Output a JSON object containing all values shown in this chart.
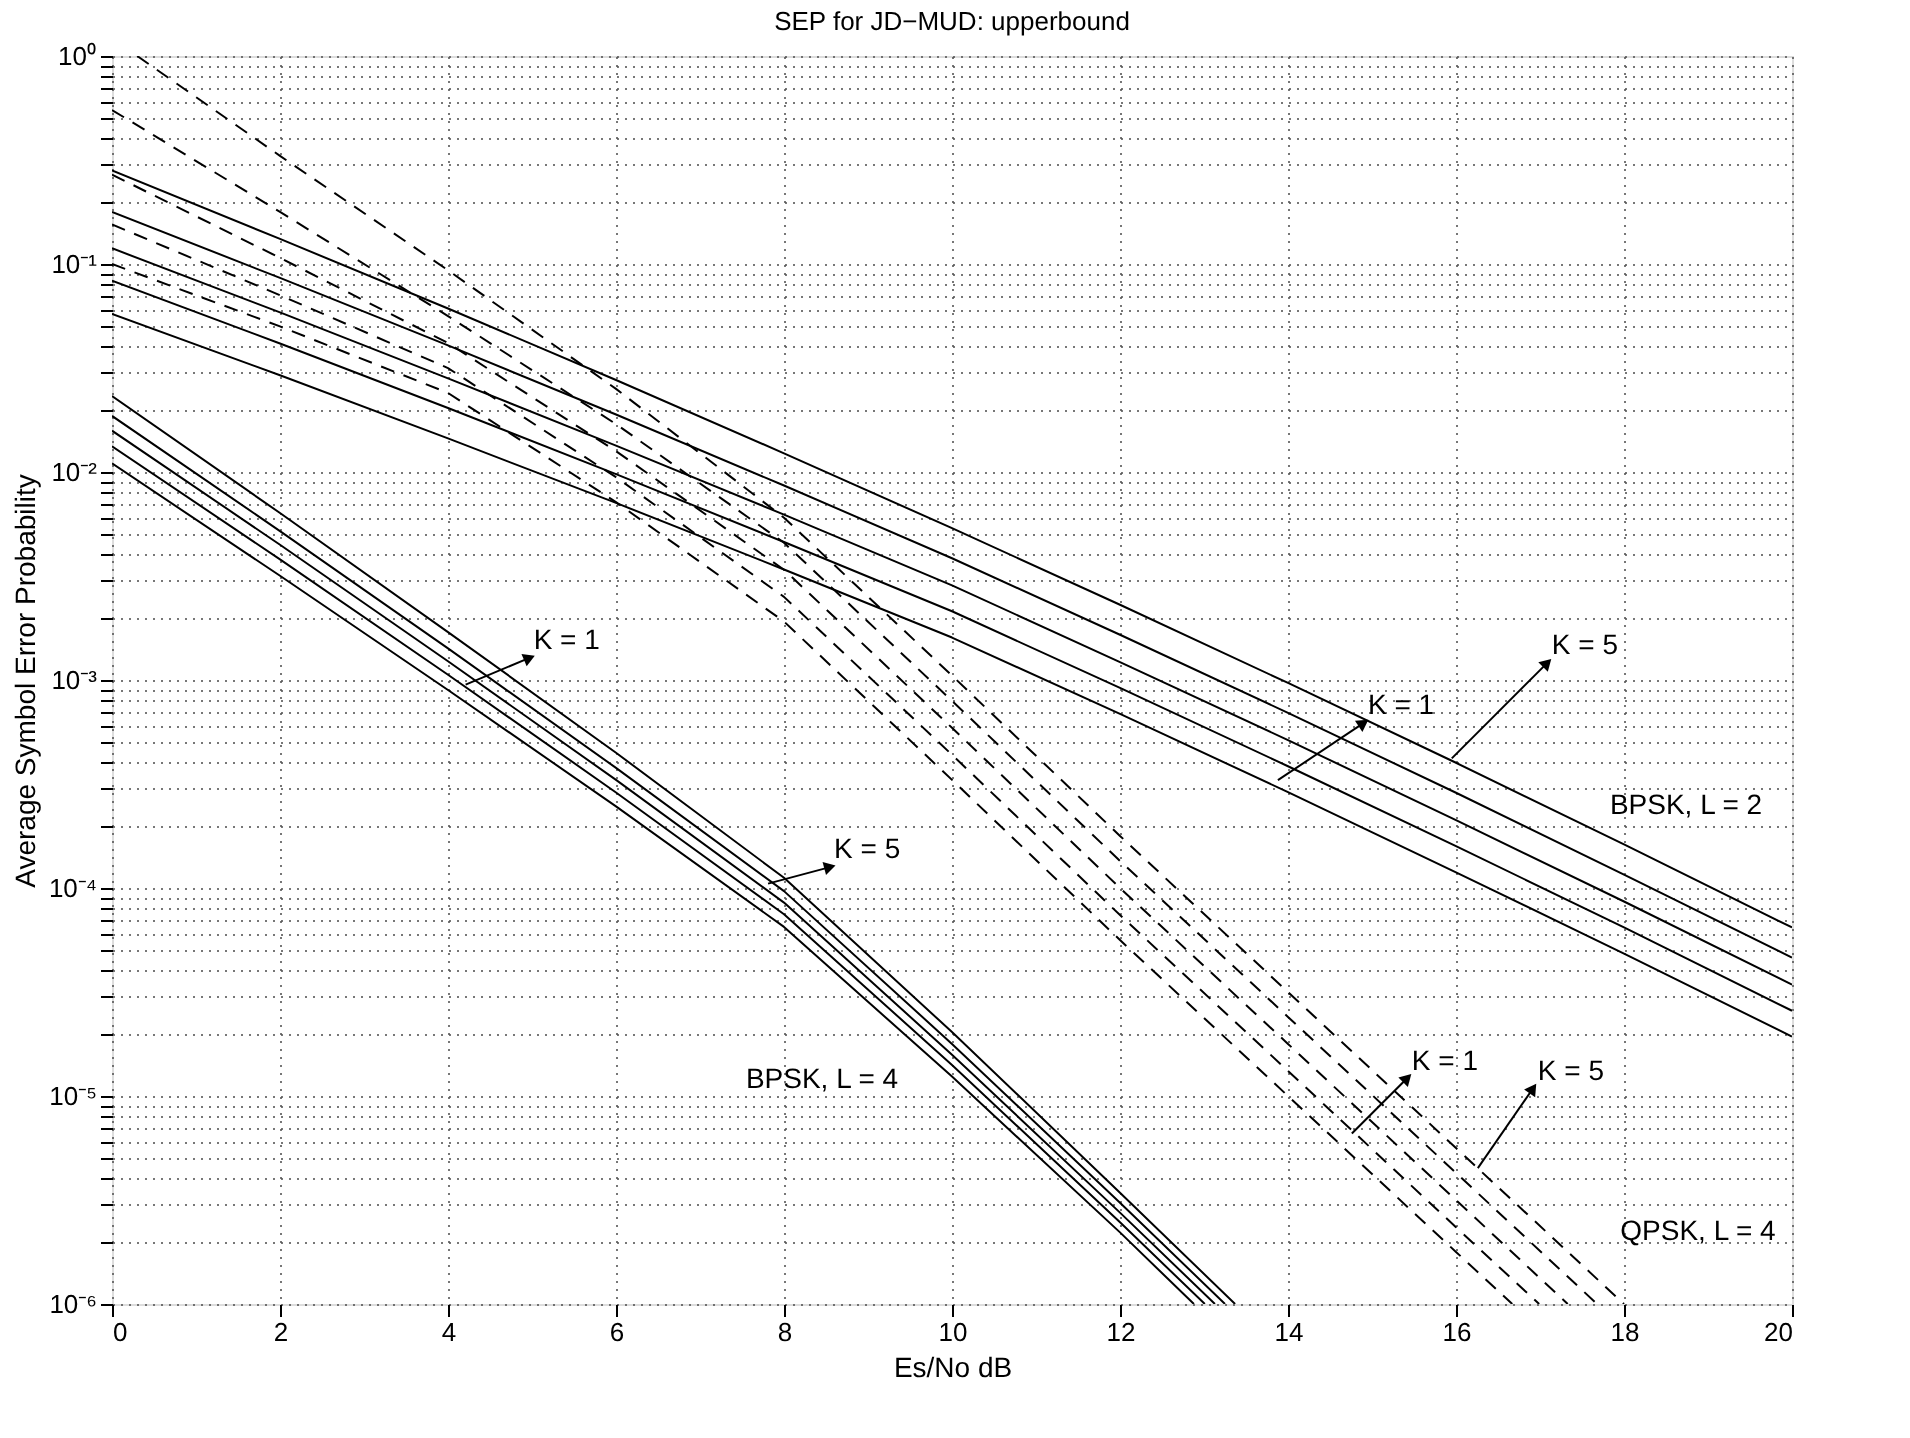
{
  "chart_data": {
    "type": "line",
    "title": "SEP for JD−MUD: upperbound",
    "xlabel": "Es/No dB",
    "ylabel": "Average Symbol Error Probability",
    "xlim": [
      0,
      20
    ],
    "xticks": [
      0,
      2,
      4,
      6,
      8,
      10,
      12,
      14,
      16,
      18,
      20
    ],
    "ylim": [
      1e-06,
      1
    ],
    "log": "y",
    "grid": true,
    "legend": false,
    "yticks": [
      {
        "value": 1e-06,
        "label": "10⁻⁶"
      },
      {
        "value": 2e-06,
        "label": null
      },
      {
        "value": 3e-06,
        "label": null
      },
      {
        "value": 4e-06,
        "label": null
      },
      {
        "value": 5e-06,
        "label": null
      },
      {
        "value": 6e-06,
        "label": null
      },
      {
        "value": 7e-06,
        "label": null
      },
      {
        "value": 8e-06,
        "label": null
      },
      {
        "value": 9e-06,
        "label": null
      },
      {
        "value": 1e-05,
        "label": "10⁻⁵"
      },
      {
        "value": 2e-05,
        "label": null
      },
      {
        "value": 3e-05,
        "label": null
      },
      {
        "value": 4e-05,
        "label": null
      },
      {
        "value": 5e-05,
        "label": null
      },
      {
        "value": 6e-05,
        "label": null
      },
      {
        "value": 7e-05,
        "label": null
      },
      {
        "value": 8e-05,
        "label": null
      },
      {
        "value": 9e-05,
        "label": null
      },
      {
        "value": 0.0001,
        "label": "10⁻⁴"
      },
      {
        "value": 0.0002,
        "label": null
      },
      {
        "value": 0.0003,
        "label": null
      },
      {
        "value": 0.0004,
        "label": null
      },
      {
        "value": 0.0005,
        "label": null
      },
      {
        "value": 0.0006,
        "label": null
      },
      {
        "value": 0.0007,
        "label": null
      },
      {
        "value": 0.0008,
        "label": null
      },
      {
        "value": 0.0009,
        "label": null
      },
      {
        "value": 0.001,
        "label": "10⁻³"
      },
      {
        "value": 0.002,
        "label": null
      },
      {
        "value": 0.003,
        "label": null
      },
      {
        "value": 0.004,
        "label": null
      },
      {
        "value": 0.005,
        "label": null
      },
      {
        "value": 0.006,
        "label": null
      },
      {
        "value": 0.007,
        "label": null
      },
      {
        "value": 0.008,
        "label": null
      },
      {
        "value": 0.009,
        "label": null
      },
      {
        "value": 0.01,
        "label": "10⁻²"
      },
      {
        "value": 0.02,
        "label": null
      },
      {
        "value": 0.03,
        "label": null
      },
      {
        "value": 0.04,
        "label": null
      },
      {
        "value": 0.05,
        "label": null
      },
      {
        "value": 0.06,
        "label": null
      },
      {
        "value": 0.07,
        "label": null
      },
      {
        "value": 0.08,
        "label": null
      },
      {
        "value": 0.09,
        "label": null
      },
      {
        "value": 0.1,
        "label": "10⁻¹"
      },
      {
        "value": 0.2,
        "label": null
      },
      {
        "value": 0.3,
        "label": null
      },
      {
        "value": 0.4,
        "label": null
      },
      {
        "value": 0.5,
        "label": null
      },
      {
        "value": 0.6,
        "label": null
      },
      {
        "value": 0.7,
        "label": null
      },
      {
        "value": 0.8,
        "label": null
      },
      {
        "value": 0.9,
        "label": null
      },
      {
        "value": 1,
        "label": "10⁰"
      }
    ],
    "series": [
      {
        "color": "#000000",
        "line_style": "solid",
        "x": [
          0,
          2,
          4,
          6,
          8,
          10,
          12,
          14,
          16,
          18,
          20
        ],
        "values": [
          0.282,
          0.132,
          0.0611,
          0.0277,
          0.0123,
          0.00537,
          0.0023,
          0.000968,
          0.0004,
          0.000162,
          6.46e-05
        ]
      },
      {
        "color": "#000000",
        "line_style": "solid",
        "x": [
          0,
          2,
          4,
          6,
          8,
          10,
          12,
          14,
          16,
          18,
          20
        ],
        "values": [
          0.178,
          0.0857,
          0.0406,
          0.0189,
          0.00861,
          0.00385,
          0.00165,
          0.000695,
          0.000287,
          0.000116,
          4.63e-05
        ]
      },
      {
        "color": "#000000",
        "line_style": "solid",
        "x": [
          0,
          2,
          4,
          6,
          8,
          10,
          12,
          14,
          16,
          18,
          20
        ],
        "values": [
          0.119,
          0.0585,
          0.0282,
          0.0134,
          0.00624,
          0.00285,
          0.00122,
          0.000514,
          0.000212,
          8.61e-05,
          3.43e-05
        ]
      },
      {
        "color": "#000000",
        "line_style": "solid",
        "x": [
          0,
          2,
          4,
          6,
          8,
          10,
          12,
          14,
          16,
          18,
          20
        ],
        "values": [
          0.0832,
          0.0415,
          0.0203,
          0.00977,
          0.00461,
          0.00214,
          0.000916,
          0.000385,
          0.000159,
          6.46e-05,
          2.57e-05
        ]
      },
      {
        "color": "#000000",
        "line_style": "solid",
        "x": [
          0,
          2,
          4,
          6,
          8,
          10,
          12,
          14,
          16,
          18,
          20
        ],
        "values": [
          0.0575,
          0.0292,
          0.0145,
          0.0071,
          0.0034,
          0.0016,
          0.000687,
          0.000289,
          0.000119,
          4.84e-05,
          1.93e-05
        ]
      },
      {
        "color": "#000000",
        "line_style": "solid",
        "x": [
          0,
          2,
          4,
          6,
          8,
          10,
          12,
          13.37
        ],
        "values": [
          0.0232,
          0.00635,
          0.0017,
          0.000447,
          0.000112,
          2.03e-05,
          3.43e-06,
          1e-06
        ]
      },
      {
        "color": "#000000",
        "line_style": "solid",
        "x": [
          0,
          2,
          4,
          6,
          8,
          10,
          12,
          13.25
        ],
        "values": [
          0.0186,
          0.0052,
          0.00142,
          0.000378,
          9.66e-05,
          1.78e-05,
          3.07e-06,
          1e-06
        ]
      },
      {
        "color": "#000000",
        "line_style": "solid",
        "x": [
          0,
          2,
          4,
          6,
          8,
          10,
          12,
          13.13
        ],
        "values": [
          0.0158,
          0.00447,
          0.00123,
          0.000331,
          8.51e-05,
          1.58e-05,
          2.75e-06,
          1e-06
        ]
      },
      {
        "color": "#000000",
        "line_style": "solid",
        "x": [
          0,
          2,
          4,
          6,
          8,
          10,
          12,
          13.01
        ],
        "values": [
          0.0133,
          0.0038,
          0.00106,
          0.000288,
          7.48e-05,
          1.41e-05,
          2.47e-06,
          1e-06
        ]
      },
      {
        "color": "#000000",
        "line_style": "solid",
        "x": [
          0,
          2,
          4,
          6,
          8,
          10,
          12,
          12.88
        ],
        "values": [
          0.011,
          0.00317,
          0.000895,
          0.000247,
          6.5e-05,
          1.24e-05,
          2.21e-06,
          1e-06
        ]
      },
      {
        "color": "#000000",
        "line_style": "dashed",
        "x": [
          0.3,
          2,
          4,
          6,
          8,
          10,
          12,
          14,
          16,
          18
        ],
        "values": [
          1,
          0.331,
          0.0933,
          0.0251,
          0.00603,
          0.00105,
          0.000178,
          3.16e-05,
          5.62e-06,
          1e-06
        ]
      },
      {
        "color": "#000000",
        "line_style": "dashed",
        "x": [
          0,
          2,
          4,
          6,
          8,
          10,
          12,
          14,
          16,
          17.68
        ],
        "values": [
          0.55,
          0.178,
          0.0562,
          0.017,
          0.00457,
          0.000794,
          0.000135,
          2.4e-05,
          4.27e-06,
          1e-06
        ]
      },
      {
        "color": "#000000",
        "line_style": "dashed",
        "x": [
          0,
          2,
          4,
          6,
          8,
          10,
          12,
          14,
          16,
          17.33
        ],
        "values": [
          0.269,
          0.107,
          0.0417,
          0.0126,
          0.00339,
          0.000589,
          0.0001,
          1.78e-05,
          3.16e-06,
          1e-06
        ]
      },
      {
        "color": "#000000",
        "line_style": "dashed",
        "x": [
          0,
          2,
          4,
          6,
          8,
          10,
          12,
          14,
          16,
          16.99
        ],
        "values": [
          0.155,
          0.0708,
          0.0316,
          0.00944,
          0.00251,
          0.000437,
          7.41e-05,
          1.32e-05,
          2.34e-06,
          1e-06
        ]
      },
      {
        "color": "#000000",
        "line_style": "dashed",
        "x": [
          0,
          2,
          4,
          6,
          8,
          10,
          12,
          14,
          16,
          16.67
        ],
        "values": [
          0.1,
          0.0501,
          0.024,
          0.00716,
          0.00191,
          0.000331,
          5.62e-05,
          1e-05,
          1.78e-06,
          1e-06
        ]
      }
    ],
    "annotations": [
      {
        "text": "K = 1",
        "x": 13.88,
        "y": 0.00033
      },
      {
        "text": "K = 5",
        "x": 15.95,
        "y": 0.00042
      },
      "BPSK, L = 2",
      {
        "text": "K = 1",
        "x": 4.21,
        "y": 0.00095
      },
      {
        "text": "K = 5",
        "x": 7.81,
        "y": 0.000105
      },
      "BPSK, L = 4",
      {
        "text": "K = 1",
        "x": 14.76,
        "y": 6.6e-06
      },
      {
        "text": "K = 5",
        "x": 16.26,
        "y": 4.5e-06
      },
      "QPSK, L = 4"
    ]
  }
}
